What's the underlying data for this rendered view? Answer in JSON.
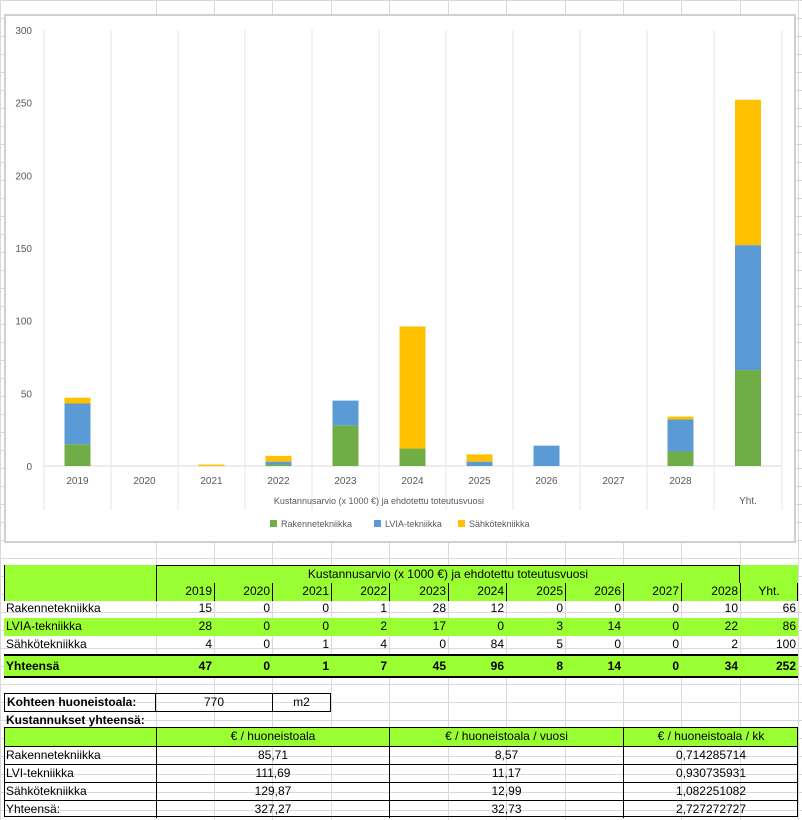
{
  "chart_data": {
    "type": "bar",
    "stacked": true,
    "categories": [
      "2019",
      "2020",
      "2021",
      "2022",
      "2023",
      "2024",
      "2025",
      "2026",
      "2027",
      "2028",
      "Yht."
    ],
    "series": [
      {
        "name": "Rakennetekniikka",
        "color": "#70ad47",
        "values": [
          15,
          0,
          0,
          1,
          28,
          12,
          0,
          0,
          0,
          10,
          66
        ]
      },
      {
        "name": "LVIA-tekniikka",
        "color": "#5b9bd5",
        "values": [
          28,
          0,
          0,
          2,
          17,
          0,
          3,
          14,
          0,
          22,
          86
        ]
      },
      {
        "name": "Sähkötekniikka",
        "color": "#ffc000",
        "values": [
          4,
          0,
          1,
          4,
          0,
          84,
          5,
          0,
          0,
          2,
          100
        ]
      }
    ],
    "xlabel": "Kustannusarvio  (x 1000 €) ja ehdotettu toteutusvuosi",
    "ylim": [
      0,
      300
    ],
    "yticks": [
      "300",
      "250",
      "200",
      "150",
      "100",
      "50",
      "0"
    ],
    "grid": true,
    "legend": "bottom"
  },
  "table": {
    "header_title": "Kustannusarvio (x 1000 €) ja ehdotettu toteutusvuosi",
    "years": [
      "2019",
      "2020",
      "2021",
      "2022",
      "2023",
      "2024",
      "2025",
      "2026",
      "2027",
      "2028"
    ],
    "total_label": "Yht.",
    "rows": [
      {
        "label": "Rakennetekniikka",
        "values": [
          "15",
          "0",
          "0",
          "1",
          "28",
          "12",
          "0",
          "0",
          "0",
          "10"
        ],
        "total": "66"
      },
      {
        "label": "LVIA-tekniikka",
        "values": [
          "28",
          "0",
          "0",
          "2",
          "17",
          "0",
          "3",
          "14",
          "0",
          "22"
        ],
        "total": "86"
      },
      {
        "label": "Sähkötekniikka",
        "values": [
          "4",
          "0",
          "1",
          "4",
          "0",
          "84",
          "5",
          "0",
          "0",
          "2"
        ],
        "total": "100"
      }
    ],
    "sum_row": {
      "label": "Yhteensä",
      "values": [
        "47",
        "0",
        "1",
        "7",
        "45",
        "96",
        "8",
        "14",
        "0",
        "34"
      ],
      "total": "252"
    }
  },
  "area": {
    "label": "Kohteen huoneistoala:",
    "value": "770",
    "unit": "m2"
  },
  "costs": {
    "title": "Kustannukset yhteensä:",
    "headers": [
      "€ / huoneistoala",
      "€ / huoneistoala / vuosi",
      "€ / huoneistoala / kk"
    ],
    "rows": [
      {
        "label": "Rakennetekniikka",
        "v1": "85,71",
        "v2": "8,57",
        "v3": "0,714285714"
      },
      {
        "label": "LVI-tekniikka",
        "v1": "111,69",
        "v2": "11,17",
        "v3": "0,930735931"
      },
      {
        "label": "Sähkötekniikka",
        "v1": "129,87",
        "v2": "12,99",
        "v3": "1,082251082"
      },
      {
        "label": "Yhteensä:",
        "v1": "327,27",
        "v2": "32,73",
        "v3": "2,727272727"
      }
    ]
  }
}
